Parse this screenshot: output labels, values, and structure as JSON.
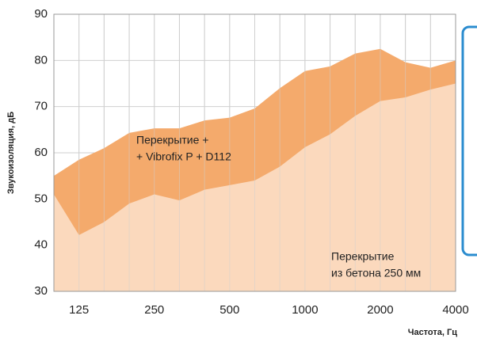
{
  "chart_data": {
    "type": "area",
    "y_label": "Звукоизоляция, дБ",
    "x_label": "Частота, Гц",
    "categories": [
      null,
      "125",
      null,
      null,
      "250",
      null,
      null,
      "500",
      null,
      null,
      "1000",
      null,
      null,
      "2000",
      null,
      null,
      "4000"
    ],
    "series": [
      {
        "color": "#fbd9bd",
        "values": [
          51,
          42.2,
          45,
          49,
          51,
          49.7,
          52,
          53,
          54,
          57,
          61.2,
          64,
          68,
          71.2,
          72,
          73.7,
          75
        ]
      },
      {
        "color": "#f4aa6c",
        "values": [
          55,
          58.5,
          61,
          64.3,
          65.3,
          65.3,
          67,
          67.6,
          69.6,
          74,
          77.7,
          78.7,
          81.5,
          82.5,
          79.6,
          78.4,
          80
        ]
      }
    ],
    "annotations": [
      {
        "lines": [
          "Перекрытие +",
          "+ Vibrofix P + D112"
        ]
      },
      {
        "lines": [
          "Перекрытие",
          "из бетона 250 мм"
        ]
      }
    ],
    "ylim": [
      30,
      90
    ],
    "yticks": [
      30,
      40,
      50,
      60,
      70,
      80,
      90
    ],
    "grid": true
  }
}
